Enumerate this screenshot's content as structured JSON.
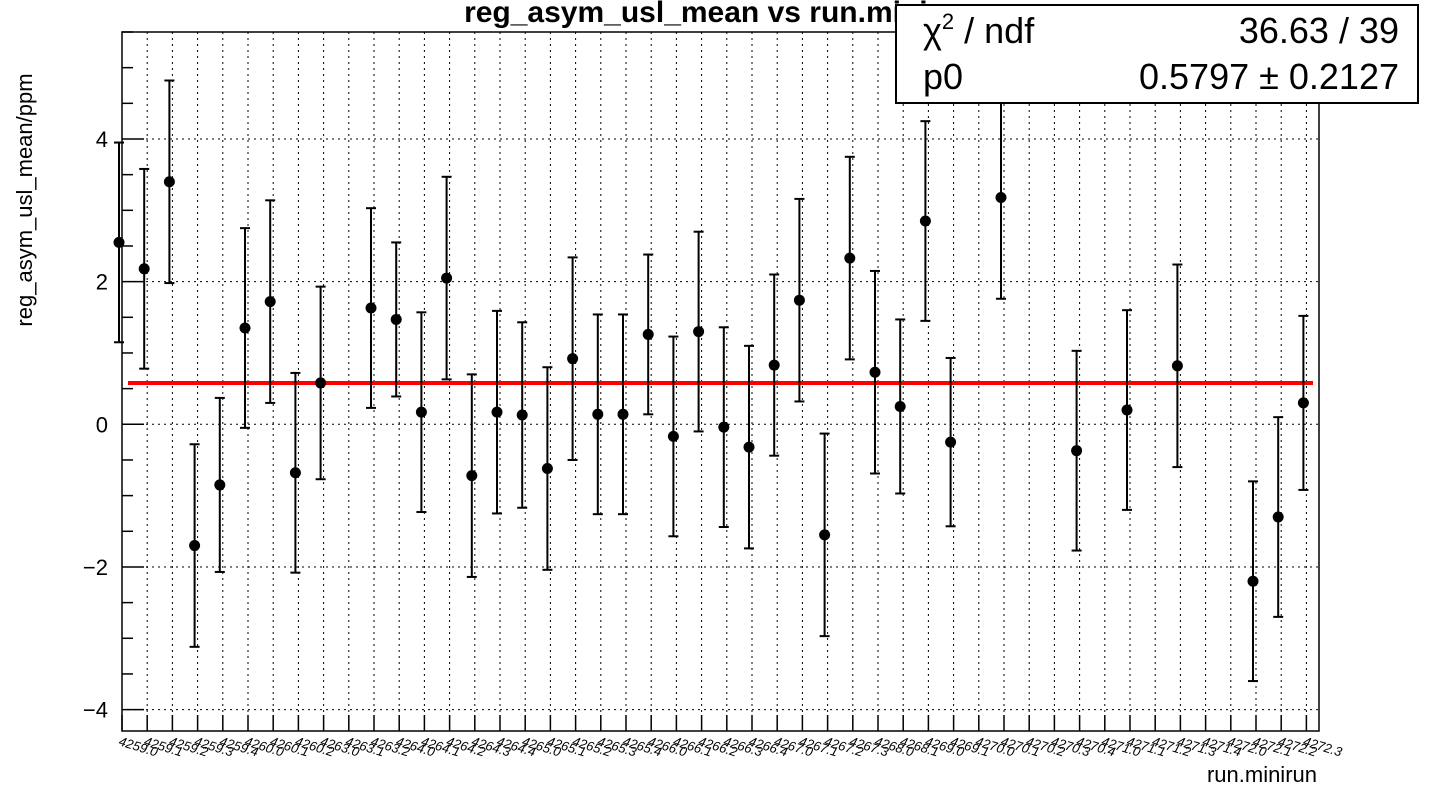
{
  "chart_data": {
    "type": "scatter",
    "title": "reg_asym_usl_mean vs run.minirun",
    "xlabel": "run.minirun",
    "ylabel": "reg_asym_usl_mean/ppm",
    "ylim": [
      -4.3,
      5.5
    ],
    "yticks": [
      -4,
      -2,
      0,
      2,
      4
    ],
    "grid": true,
    "categories": [
      "4259.0",
      "4259.1",
      "4259.2",
      "4259.3",
      "4259.4",
      "4260.0",
      "4260.1",
      "4260.2",
      "4263.0",
      "4263.1",
      "4263.2",
      "4264.0",
      "4264.1",
      "4264.2",
      "4264.3",
      "4264.4",
      "4265.0",
      "4265.1",
      "4265.2",
      "4265.3",
      "4265.4",
      "4266.0",
      "4266.1",
      "4266.2",
      "4266.3",
      "4266.4",
      "4267.0",
      "4267.1",
      "4267.2",
      "4267.3",
      "4268.0",
      "4268.1",
      "4269.0",
      "4269.1",
      "4270.0",
      "4270.1",
      "4270.2",
      "4270.3",
      "4270.4",
      "4271.0",
      "4271.1",
      "4271.2",
      "4271.3",
      "4271.4",
      "4272.0",
      "4272.1",
      "4272.2",
      "4272.3"
    ],
    "series": [
      {
        "marker": "circle",
        "color": "#000000",
        "values": [
          {
            "x": 0,
            "y": 2.55,
            "err": 1.4
          },
          {
            "x": 1,
            "y": 2.18,
            "err": 1.4
          },
          {
            "x": 2,
            "y": 3.4,
            "err": 1.42
          },
          {
            "x": 3,
            "y": -1.7,
            "err": 1.42
          },
          {
            "x": 4,
            "y": -0.85,
            "err": 1.22
          },
          {
            "x": 5,
            "y": 1.35,
            "err": 1.4
          },
          {
            "x": 6,
            "y": 1.72,
            "err": 1.42
          },
          {
            "x": 7,
            "y": -0.68,
            "err": 1.4
          },
          {
            "x": 8,
            "y": 0.58,
            "err": 1.35
          },
          {
            "x": 10,
            "y": 1.63,
            "err": 1.4
          },
          {
            "x": 11,
            "y": 1.47,
            "err": 1.08
          },
          {
            "x": 12,
            "y": 0.17,
            "err": 1.4
          },
          {
            "x": 13,
            "y": 2.05,
            "err": 1.42
          },
          {
            "x": 14,
            "y": -0.72,
            "err": 1.42
          },
          {
            "x": 15,
            "y": 0.17,
            "err": 1.42
          },
          {
            "x": 16,
            "y": 0.13,
            "err": 1.3
          },
          {
            "x": 17,
            "y": -0.62,
            "err": 1.42
          },
          {
            "x": 18,
            "y": 0.92,
            "err": 1.42
          },
          {
            "x": 19,
            "y": 0.14,
            "err": 1.4
          },
          {
            "x": 20,
            "y": 0.14,
            "err": 1.4
          },
          {
            "x": 21,
            "y": 1.26,
            "err": 1.12
          },
          {
            "x": 22,
            "y": -0.17,
            "err": 1.4
          },
          {
            "x": 23,
            "y": 1.3,
            "err": 1.4
          },
          {
            "x": 24,
            "y": -0.04,
            "err": 1.4
          },
          {
            "x": 25,
            "y": -0.32,
            "err": 1.42
          },
          {
            "x": 26,
            "y": 0.83,
            "err": 1.27
          },
          {
            "x": 27,
            "y": 1.74,
            "err": 1.42
          },
          {
            "x": 28,
            "y": -1.55,
            "err": 1.42
          },
          {
            "x": 29,
            "y": 2.33,
            "err": 1.42
          },
          {
            "x": 30,
            "y": 0.73,
            "err": 1.42
          },
          {
            "x": 31,
            "y": 0.25,
            "err": 1.22
          },
          {
            "x": 32,
            "y": 2.85,
            "err": 1.4
          },
          {
            "x": 33,
            "y": -0.25,
            "err": 1.18
          },
          {
            "x": 35,
            "y": 3.18,
            "err": 1.42
          },
          {
            "x": 38,
            "y": -0.37,
            "err": 1.4
          },
          {
            "x": 40,
            "y": 0.2,
            "err": 1.4
          },
          {
            "x": 42,
            "y": 0.82,
            "err": 1.42
          },
          {
            "x": 45,
            "y": -2.2,
            "err": 1.4
          },
          {
            "x": 46,
            "y": -1.3,
            "err": 1.4
          },
          {
            "x": 47,
            "y": 0.3,
            "err": 1.22
          }
        ]
      }
    ],
    "fit": {
      "type": "constant",
      "value": 0.5797,
      "color": "#ff0000"
    }
  },
  "stats": {
    "chi2_label": "χ",
    "chi2_sup": "2",
    "chi2_suffix": " / ndf",
    "chi2_value": "36.63 / 39",
    "p0_label": "p0",
    "p0_value": "0.5797 ± 0.2127"
  }
}
